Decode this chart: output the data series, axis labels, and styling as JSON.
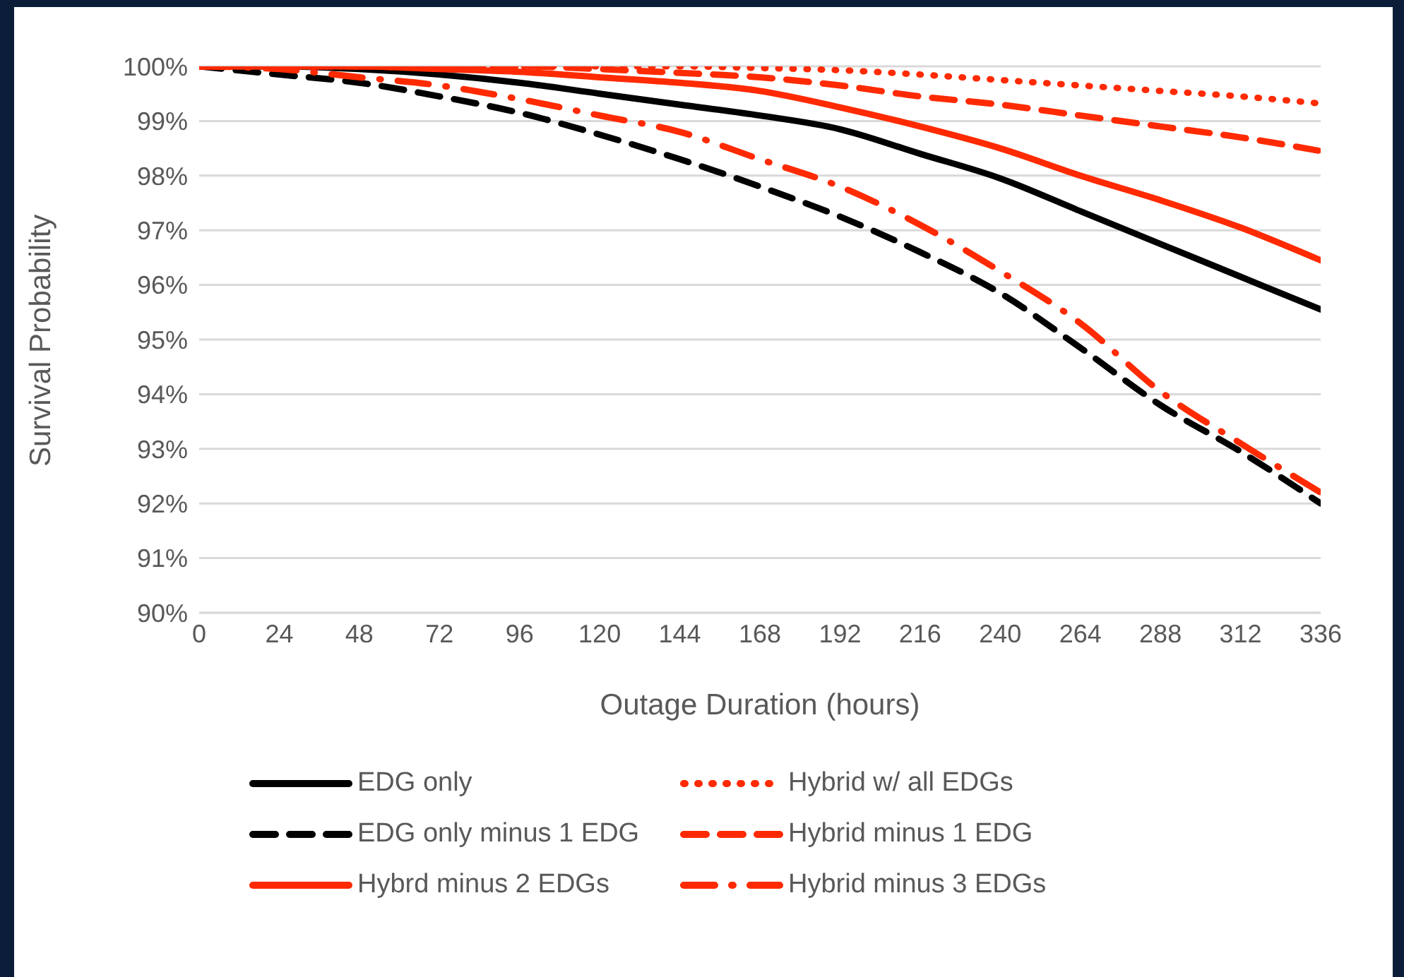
{
  "chart_data": {
    "type": "line",
    "xlabel": "Outage Duration (hours)",
    "ylabel": "Survival Probability",
    "x": [
      0,
      24,
      48,
      72,
      96,
      120,
      144,
      168,
      192,
      216,
      240,
      264,
      288,
      312,
      336
    ],
    "xlim": [
      0,
      336
    ],
    "xticks": [
      0,
      24,
      48,
      72,
      96,
      120,
      144,
      168,
      192,
      216,
      240,
      264,
      288,
      312,
      336
    ],
    "ylim": [
      90,
      100
    ],
    "yticks": [
      {
        "value": 90,
        "label": "90%"
      },
      {
        "value": 91,
        "label": "91%"
      },
      {
        "value": 92,
        "label": "92%"
      },
      {
        "value": 93,
        "label": "93%"
      },
      {
        "value": 94,
        "label": "94%"
      },
      {
        "value": 95,
        "label": "95%"
      },
      {
        "value": 96,
        "label": "96%"
      },
      {
        "value": 97,
        "label": "97%"
      },
      {
        "value": 98,
        "label": "98%"
      },
      {
        "value": 99,
        "label": "99%"
      },
      {
        "value": 100,
        "label": "100%"
      }
    ],
    "grid": "y",
    "legend": "bottom",
    "marker": "none",
    "series": [
      {
        "name": "EDG only",
        "color": "#000000",
        "line_style": "solid",
        "values": [
          100,
          100,
          99.95,
          99.85,
          99.7,
          99.5,
          99.3,
          99.1,
          98.85,
          98.4,
          97.95,
          97.35,
          96.75,
          96.15,
          95.55
        ]
      },
      {
        "name": "Hybrid w/ all EDGs",
        "color": "#ff2a00",
        "line_style": "dotted",
        "values": [
          100,
          100,
          100,
          100,
          100,
          100,
          100,
          99.97,
          99.93,
          99.85,
          99.75,
          99.65,
          99.55,
          99.45,
          99.32
        ]
      },
      {
        "name": "EDG only minus 1 EDG",
        "color": "#000000",
        "line_style": "dashed",
        "values": [
          100,
          99.85,
          99.7,
          99.45,
          99.15,
          98.75,
          98.3,
          97.8,
          97.25,
          96.6,
          95.85,
          94.85,
          93.8,
          92.95,
          92.0
        ]
      },
      {
        "name": "Hybrid minus 1 EDG",
        "color": "#ff2a00",
        "line_style": "dashed",
        "values": [
          100,
          100,
          100,
          100,
          100,
          99.95,
          99.88,
          99.8,
          99.65,
          99.45,
          99.3,
          99.1,
          98.9,
          98.7,
          98.45
        ]
      },
      {
        "name": "Hybrd minus 2 EDGs",
        "color": "#ff2a00",
        "line_style": "solid",
        "values": [
          100,
          100,
          100,
          99.95,
          99.9,
          99.8,
          99.7,
          99.55,
          99.25,
          98.9,
          98.5,
          98.0,
          97.55,
          97.05,
          96.45
        ]
      },
      {
        "name": "Hybrid minus 3 EDGs",
        "color": "#ff2a00",
        "line_style": "dashdot",
        "values": [
          100,
          99.95,
          99.8,
          99.65,
          99.4,
          99.1,
          98.8,
          98.3,
          97.8,
          97.1,
          96.25,
          95.3,
          94.05,
          93.1,
          92.2
        ]
      }
    ]
  }
}
